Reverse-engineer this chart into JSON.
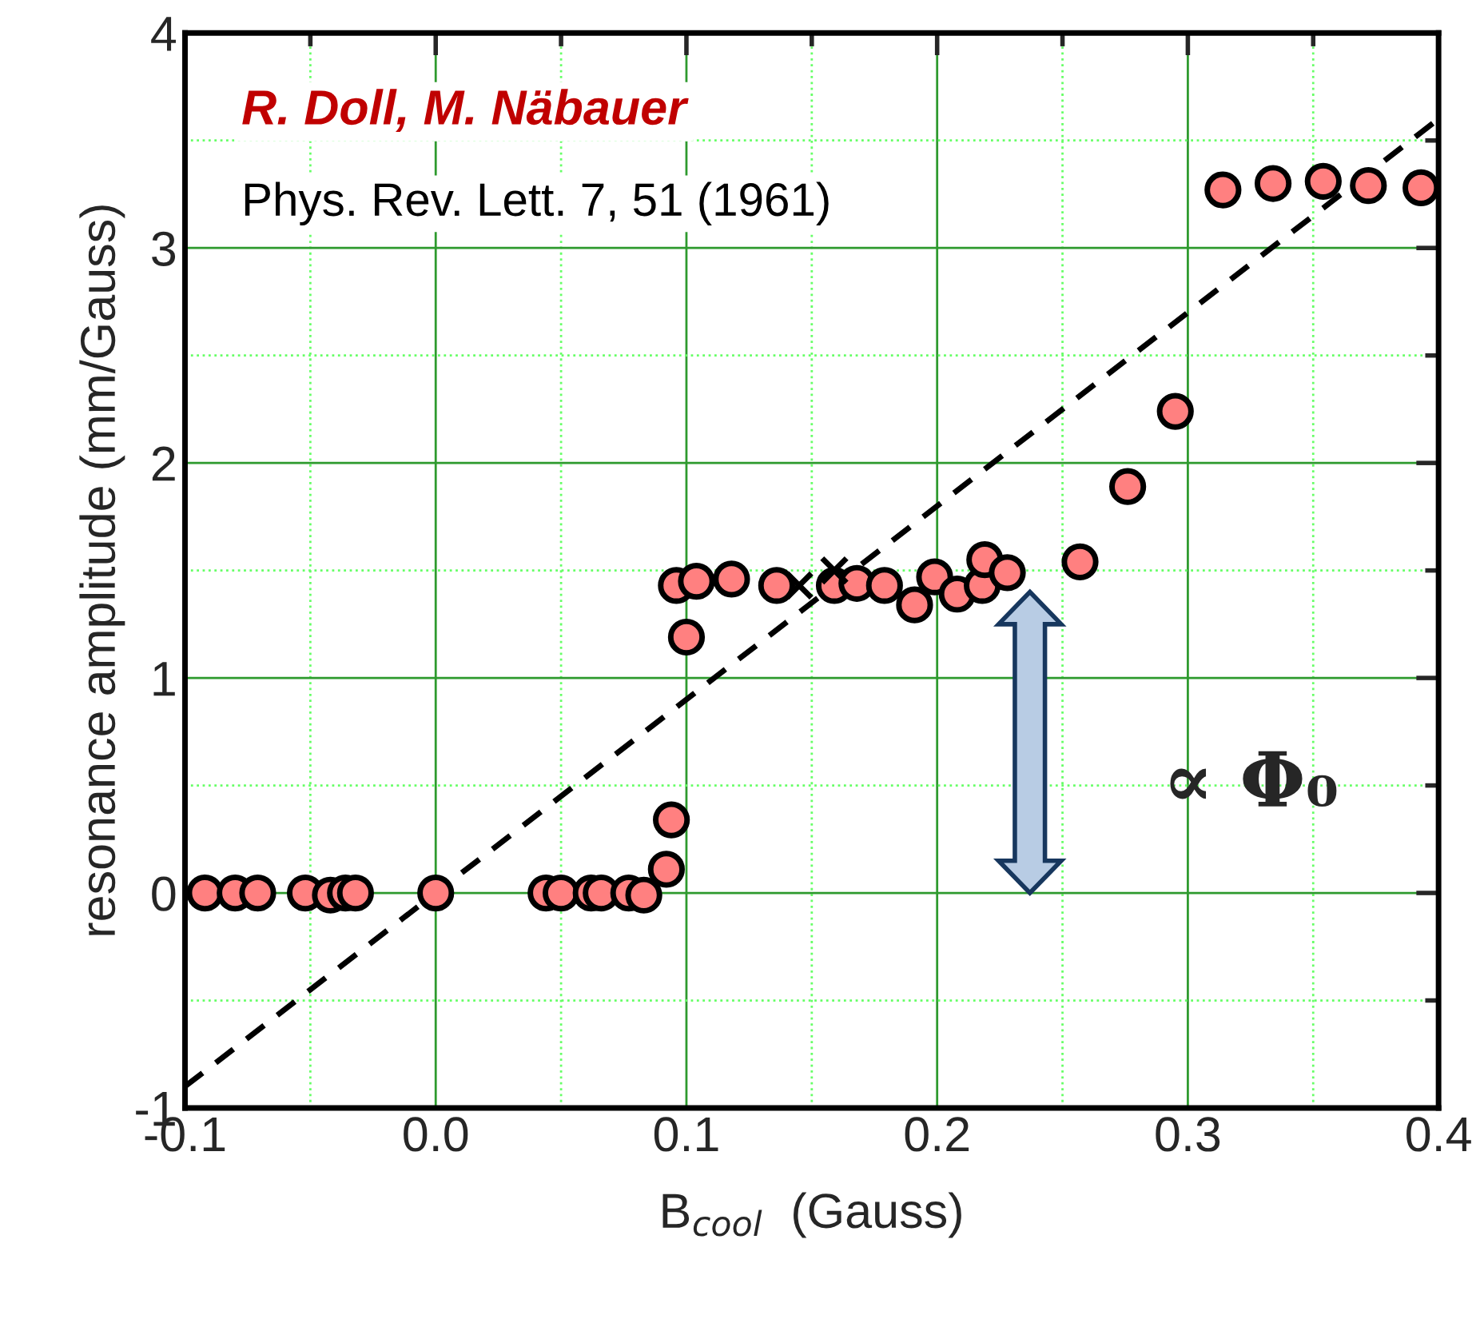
{
  "chart_data": {
    "type": "scatter",
    "xlabel": "B$_{cool}$  (Gauss)",
    "ylabel": "resonance amplitude (mm/Gauss)",
    "xlim": [
      -0.1,
      0.4
    ],
    "ylim": [
      -1,
      4
    ],
    "xticks": [
      {
        "value": -0.1,
        "label": "-0.1"
      },
      {
        "value": -0.05,
        "label": null
      },
      {
        "value": 0.0,
        "label": "0.0"
      },
      {
        "value": 0.05,
        "label": null
      },
      {
        "value": 0.1,
        "label": "0.1"
      },
      {
        "value": 0.15,
        "label": null
      },
      {
        "value": 0.2,
        "label": "0.2"
      },
      {
        "value": 0.25,
        "label": null
      },
      {
        "value": 0.3,
        "label": "0.3"
      },
      {
        "value": 0.35,
        "label": null
      },
      {
        "value": 0.4,
        "label": "0.4"
      }
    ],
    "yticks": [
      -1,
      {
        "value": -0.5,
        "label": null
      },
      0,
      {
        "value": 0.5,
        "label": null
      },
      1,
      {
        "value": 1.5,
        "label": null
      },
      2,
      {
        "value": 2.5,
        "label": null
      },
      3,
      {
        "value": 3.5,
        "label": null
      },
      4
    ],
    "grid": true,
    "series": [
      {
        "marker": "circle",
        "color": "#ff8080",
        "x": [
          -0.092,
          -0.08,
          -0.071,
          -0.052,
          -0.042,
          -0.036,
          -0.032,
          0.0,
          0.044,
          0.05,
          0.062,
          0.066,
          0.077,
          0.083,
          0.092,
          0.094,
          0.1,
          0.096,
          0.104,
          0.118,
          0.136,
          0.159,
          0.168,
          0.179,
          0.191,
          0.199,
          0.208,
          0.218,
          0.219,
          0.228,
          0.257,
          0.276,
          0.295,
          0.314,
          0.334,
          0.354,
          0.372,
          0.393
        ],
        "values": [
          0,
          0,
          0,
          0,
          -0.01,
          0,
          0,
          0,
          0,
          0,
          0,
          0,
          0,
          -0.01,
          0.11,
          0.34,
          1.19,
          1.43,
          1.45,
          1.46,
          1.43,
          1.43,
          1.44,
          1.43,
          1.34,
          1.47,
          1.39,
          1.43,
          1.55,
          1.49,
          1.54,
          1.89,
          2.24,
          3.27,
          3.3,
          3.31,
          3.29,
          3.28
        ]
      },
      {
        "marker": "cross",
        "color": "#000000",
        "x": [
          0.145,
          0.159
        ],
        "values": [
          1.43,
          1.5
        ]
      },
      {
        "type": "line",
        "line_style": "dashed",
        "color": "#000000",
        "x": [
          -0.1,
          0.4
        ],
        "values": [
          -0.9,
          3.6
        ]
      }
    ],
    "annotations": [
      "R. Doll, M. Näbauer",
      "Phys. Rev. Lett. 7, 51 (1961)",
      "∝ Φ₀"
    ]
  }
}
